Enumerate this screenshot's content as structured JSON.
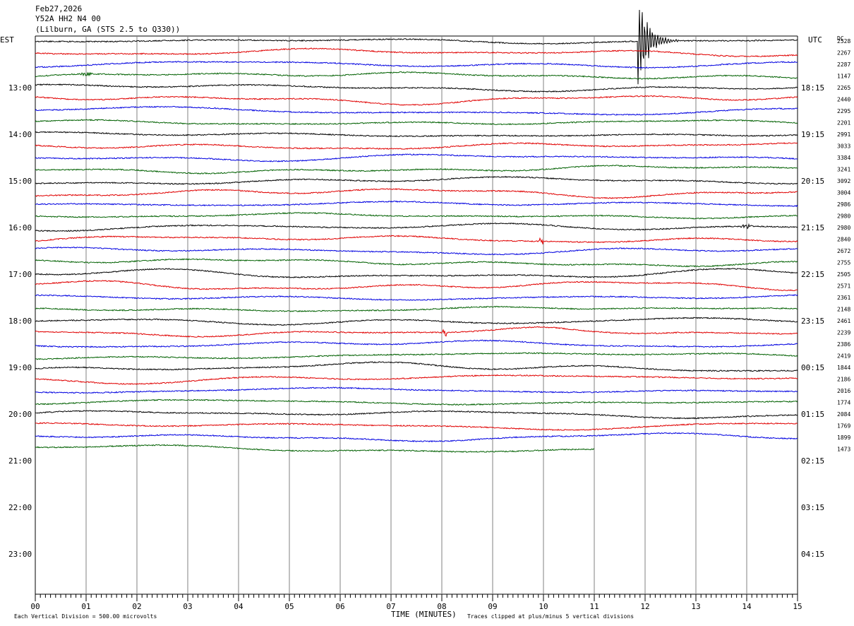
{
  "header": {
    "date": "Feb27,2026",
    "station": "Y52A HH2 N4 00",
    "location": "(Lilburn, GA (STS 2.5 to Q330))"
  },
  "chart_data": {
    "type": "line",
    "subtype": "helicorder",
    "left_timezone": "EST",
    "right_timezone": "UTC",
    "dc_header": "DC",
    "x_title": "TIME (MINUTES)",
    "x_ticks": [
      "00",
      "01",
      "02",
      "03",
      "04",
      "05",
      "06",
      "07",
      "08",
      "09",
      "10",
      "11",
      "12",
      "13",
      "14",
      "15"
    ],
    "xlim": [
      0,
      15
    ],
    "minutes_per_line": 15,
    "lines_per_hour": 4,
    "grid": true,
    "hour_labels_left": [
      "13:00",
      "14:00",
      "15:00",
      "16:00",
      "17:00",
      "18:00",
      "19:00",
      "20:00",
      "21:00",
      "22:00",
      "23:00"
    ],
    "hour_labels_right": [
      "18:15",
      "19:15",
      "20:15",
      "21:15",
      "22:15",
      "23:15",
      "00:15",
      "01:15",
      "02:15",
      "03:15",
      "04:15"
    ],
    "trace_colors": [
      "#000000",
      "#e00000",
      "#0000e0",
      "#006000"
    ],
    "dc_values": [
      "2528",
      "2267",
      "2287",
      "1147",
      "2265",
      "2440",
      "2295",
      "2201",
      "2991",
      "3033",
      "3384",
      "3241",
      "3092",
      "3004",
      "2986",
      "2980",
      "2980",
      "2840",
      "2672",
      "2755",
      "2505",
      "2571",
      "2361",
      "2148",
      "2461",
      "2239",
      "2386",
      "2419",
      "1844",
      "2186",
      "2016",
      "1774",
      "2084",
      "1769",
      "1899",
      "1473"
    ],
    "last_trace_end_minute": 11.0,
    "events": [
      {
        "trace": 0,
        "minute": 11.85,
        "type": "clipped-earthquake"
      },
      {
        "trace": 3,
        "minute": 1.0,
        "type": "burst"
      },
      {
        "trace": 16,
        "minute": 14.0,
        "type": "burst"
      },
      {
        "trace": 17,
        "minute": 9.95,
        "type": "spike"
      },
      {
        "trace": 25,
        "minute": 8.05,
        "type": "spike"
      },
      {
        "trace": 25,
        "minute": 10.4,
        "type": "long-period-wave"
      }
    ],
    "footer_left": "Each Vertical Division =  500.00 microvolts",
    "footer_right": "Traces clipped at plus/minus 5 vertical divisions"
  }
}
